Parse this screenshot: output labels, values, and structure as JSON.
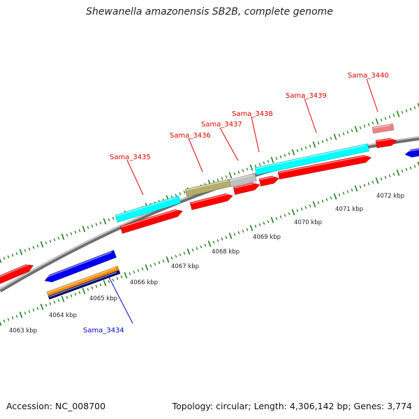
{
  "title": "Shewanella amazonensis SB2B, complete genome",
  "footer": {
    "accession": "Accession: NC_008700",
    "summary": "Topology: circular; Length: 4,306,142 bp; Genes: 3,774"
  },
  "colors": {
    "forward_cds": "#ff0000",
    "reverse_cds": "#0000ee",
    "cyan_feature": "#00ffff",
    "olive_feature": "#b5ad6a",
    "grey_feature": "#c0c0c0",
    "pink_feature": "#f08080",
    "orange_feature": "#ff8c00",
    "navy_feature": "#000066",
    "backbone": "#888888",
    "ticks": "#1a7a1a"
  },
  "scale_labels": [
    "4063 kbp",
    "4064 kbp",
    "4065 kbp",
    "4066 kbp",
    "4067 kbp",
    "4068 kbp",
    "4069 kbp",
    "4070 kbp",
    "4071 kbp",
    "4072 kbp"
  ],
  "gene_labels": [
    {
      "name": "Sama_3434",
      "strand": "reverse"
    },
    {
      "name": "Sama_3435",
      "strand": "forward"
    },
    {
      "name": "Sama_3436",
      "strand": "forward"
    },
    {
      "name": "Sama_3437",
      "strand": "forward"
    },
    {
      "name": "Sama_3438",
      "strand": "forward"
    },
    {
      "name": "Sama_3439",
      "strand": "forward"
    },
    {
      "name": "Sama_3440",
      "strand": "forward"
    }
  ]
}
